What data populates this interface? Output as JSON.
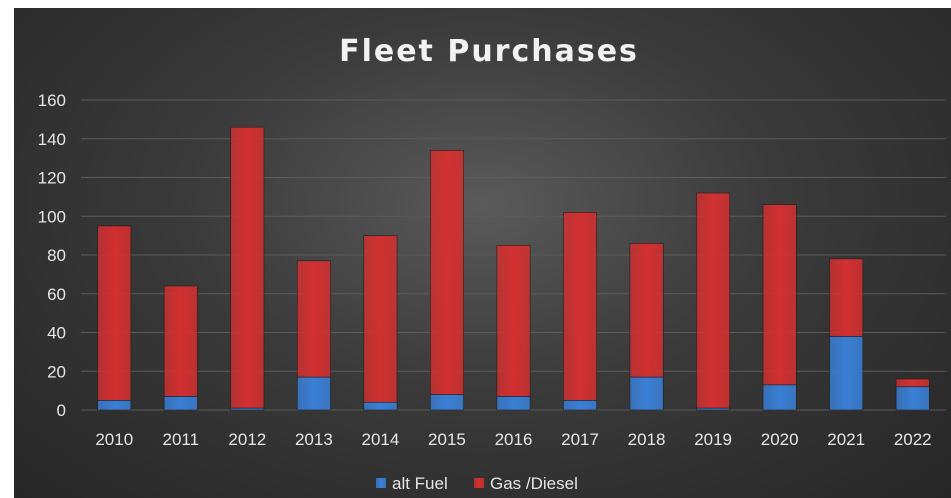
{
  "chart_data": {
    "type": "bar",
    "stacked": true,
    "title": "Fleet Purchases",
    "categories": [
      "2010",
      "2011",
      "2012",
      "2013",
      "2014",
      "2015",
      "2016",
      "2017",
      "2018",
      "2019",
      "2020",
      "2021",
      "2022"
    ],
    "series": [
      {
        "name": "alt Fuel",
        "color": "#3a7fd6",
        "values": [
          5,
          7,
          1,
          17,
          4,
          8,
          7,
          5,
          17,
          1,
          13,
          38,
          12
        ]
      },
      {
        "name": "Gas /Diesel",
        "color": "#d23030",
        "values": [
          90,
          57,
          145,
          60,
          86,
          126,
          78,
          97,
          69,
          111,
          93,
          40,
          4
        ]
      }
    ],
    "ylim": [
      0,
      160
    ],
    "yticks": [
      0,
      20,
      40,
      60,
      80,
      100,
      120,
      140,
      160
    ],
    "grid": true,
    "legend_position": "bottom"
  }
}
